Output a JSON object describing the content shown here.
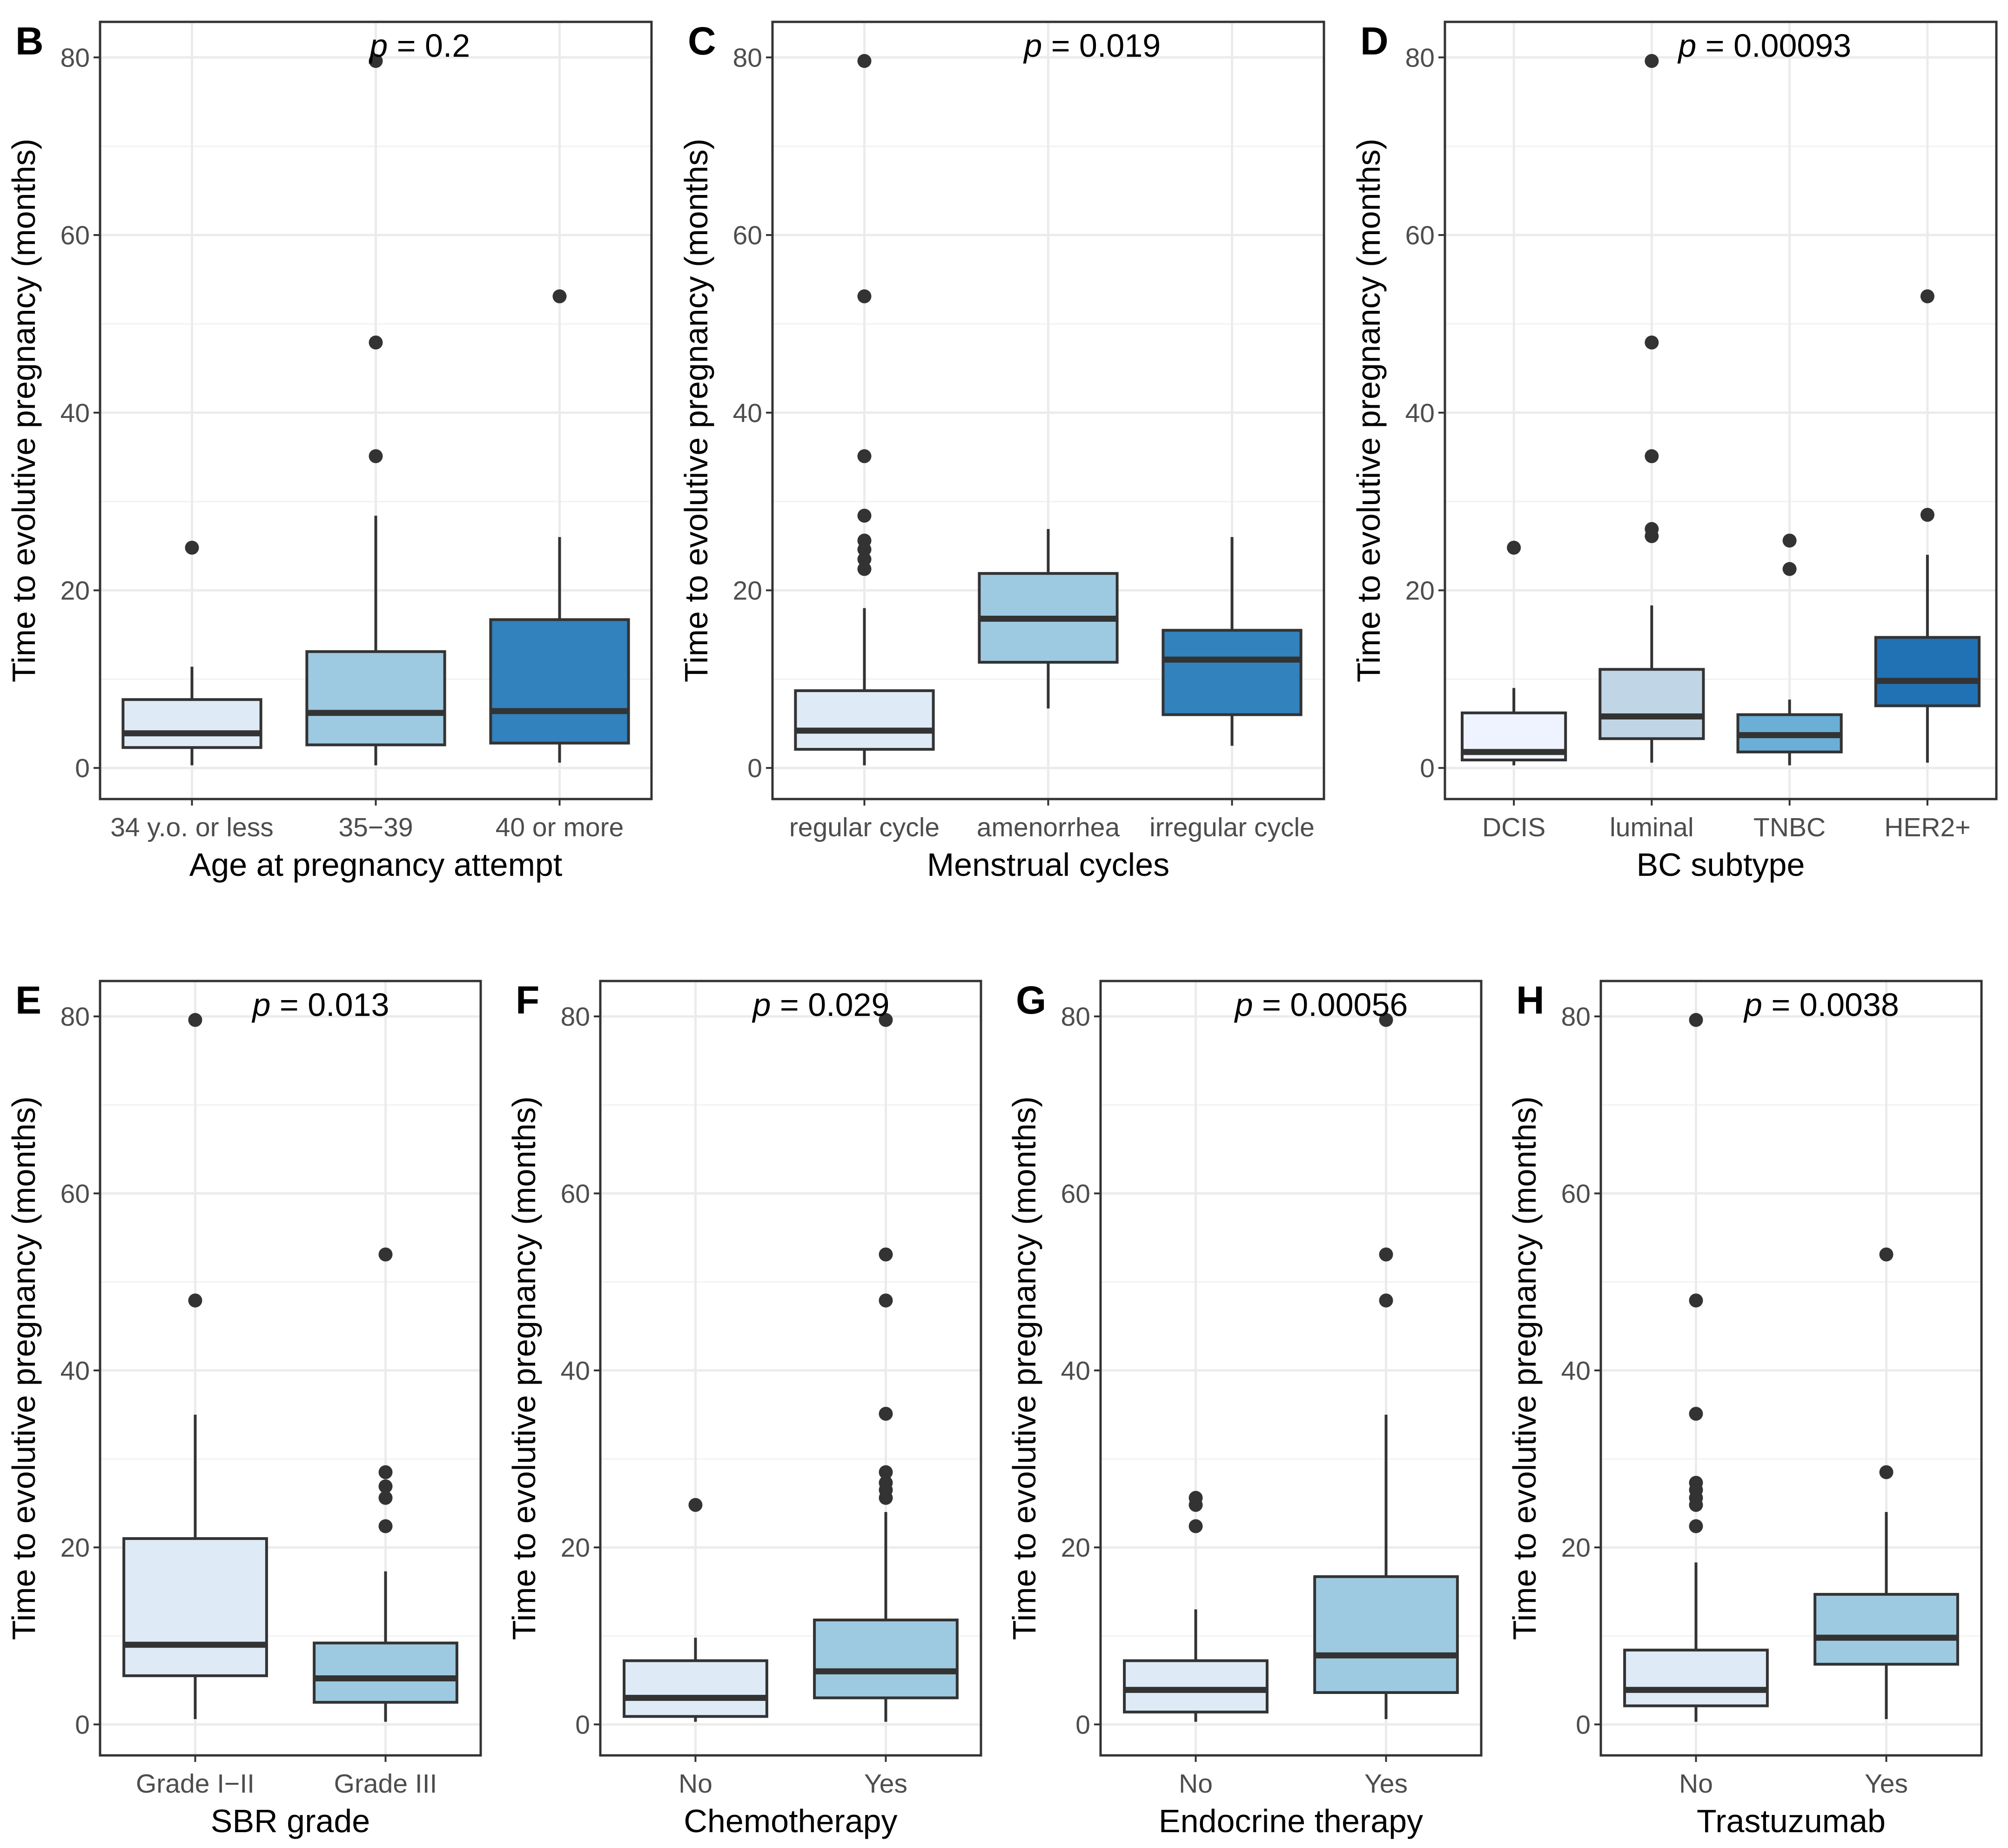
{
  "colors": {
    "fill_lightest": "#eff3ff",
    "fill_very_light": "#deebf7",
    "fill_grey_blue": "#c0d6e6",
    "fill_light": "#9ecae1",
    "fill_mid": "#6baed6",
    "fill_dark": "#3182bd",
    "fill_darkest": "#2171b5",
    "outline": "#333333",
    "frame": "#333333",
    "grid": "#ebebeb"
  },
  "chart_data": [
    {
      "panel": "B",
      "type": "boxplot",
      "title": "",
      "p_symbol": "p",
      "p_text": "= 0.2",
      "xlabel": "Age at pregnancy attempt",
      "ylabel": "Time to evolutive pregnancy (months)",
      "ylim": [
        -3.5,
        84
      ],
      "yticks": [
        "0",
        "20",
        "40",
        "60",
        "80"
      ],
      "grid": true,
      "categories": [
        "34 y.o. or less",
        "35−39",
        "40 or more"
      ],
      "boxes": [
        {
          "low": 0.3,
          "q1": 2.3,
          "median": 3.9,
          "q3": 7.7,
          "high": 11.4,
          "outliers": [
            24.8
          ],
          "fill": "#deebf7"
        },
        {
          "low": 0.3,
          "q1": 2.6,
          "median": 6.2,
          "q3": 13.1,
          "high": 28.4,
          "outliers": [
            35.1,
            47.9,
            79.6
          ],
          "fill": "#9ecae1"
        },
        {
          "low": 0.6,
          "q1": 2.8,
          "median": 6.4,
          "q3": 16.7,
          "high": 26.0,
          "outliers": [
            53.1
          ],
          "fill": "#3182bd"
        }
      ]
    },
    {
      "panel": "C",
      "type": "boxplot",
      "title": "",
      "p_symbol": "p",
      "p_text": "= 0.019",
      "xlabel": "Menstrual cycles",
      "ylabel": "Time to evolutive pregnancy (months)",
      "ylim": [
        -3.5,
        84
      ],
      "yticks": [
        "0",
        "20",
        "40",
        "60",
        "80"
      ],
      "grid": true,
      "categories": [
        "regular cycle",
        "amenorrhea",
        "irregular cycle"
      ],
      "boxes": [
        {
          "low": 0.3,
          "q1": 2.1,
          "median": 4.2,
          "q3": 8.7,
          "high": 18.0,
          "outliers": [
            22.4,
            23.5,
            24.6,
            25.6,
            28.4,
            35.1,
            53.1,
            79.6
          ],
          "fill": "#deebf7"
        },
        {
          "low": 6.7,
          "q1": 11.9,
          "median": 16.8,
          "q3": 21.9,
          "high": 26.9,
          "outliers": [],
          "fill": "#9ecae1"
        },
        {
          "low": 2.5,
          "q1": 6.0,
          "median": 12.2,
          "q3": 15.5,
          "high": 26.0,
          "outliers": [],
          "fill": "#3182bd"
        }
      ]
    },
    {
      "panel": "D",
      "type": "boxplot",
      "title": "",
      "p_symbol": "p",
      "p_text": "= 0.00093",
      "xlabel": "BC subtype",
      "ylabel": "Time to evolutive pregnancy (months)",
      "ylim": [
        -3.5,
        84
      ],
      "yticks": [
        "0",
        "20",
        "40",
        "60",
        "80"
      ],
      "grid": true,
      "categories": [
        "DCIS",
        "luminal",
        "TNBC",
        "HER2+"
      ],
      "boxes": [
        {
          "low": 0.3,
          "q1": 0.9,
          "median": 1.8,
          "q3": 6.2,
          "high": 9.0,
          "outliers": [
            24.8
          ],
          "fill": "#eff3ff"
        },
        {
          "low": 0.6,
          "q1": 3.3,
          "median": 5.8,
          "q3": 11.1,
          "high": 18.3,
          "outliers": [
            26.1,
            26.9,
            35.1,
            47.9,
            79.6
          ],
          "fill": "#c0d6e6"
        },
        {
          "low": 0.3,
          "q1": 1.8,
          "median": 3.7,
          "q3": 6.0,
          "high": 7.7,
          "outliers": [
            22.4,
            25.6
          ],
          "fill": "#6baed6"
        },
        {
          "low": 0.6,
          "q1": 7.0,
          "median": 9.8,
          "q3": 14.7,
          "high": 24.0,
          "outliers": [
            28.5,
            53.1
          ],
          "fill": "#2171b5"
        }
      ]
    },
    {
      "panel": "E",
      "type": "boxplot",
      "title": "",
      "p_symbol": "p",
      "p_text": "= 0.013",
      "xlabel": "SBR grade",
      "ylabel": "Time to evolutive pregnancy (months)",
      "ylim": [
        -3.5,
        84
      ],
      "yticks": [
        "0",
        "20",
        "40",
        "60",
        "80"
      ],
      "grid": true,
      "categories": [
        "Grade I−II",
        "Grade III"
      ],
      "boxes": [
        {
          "low": 0.6,
          "q1": 5.5,
          "median": 9.0,
          "q3": 21.0,
          "high": 35.0,
          "outliers": [
            47.9,
            79.6
          ],
          "fill": "#deebf7"
        },
        {
          "low": 0.3,
          "q1": 2.5,
          "median": 5.2,
          "q3": 9.2,
          "high": 17.3,
          "outliers": [
            22.4,
            25.6,
            26.9,
            28.5,
            53.1
          ],
          "fill": "#9ecae1"
        }
      ]
    },
    {
      "panel": "F",
      "type": "boxplot",
      "title": "",
      "p_symbol": "p",
      "p_text": "= 0.029",
      "xlabel": "Chemotherapy",
      "ylabel": "Time to evolutive pregnancy (months)",
      "ylim": [
        -3.5,
        84
      ],
      "yticks": [
        "0",
        "20",
        "40",
        "60",
        "80"
      ],
      "grid": true,
      "categories": [
        "No",
        "Yes"
      ],
      "boxes": [
        {
          "low": 0.3,
          "q1": 0.9,
          "median": 3.0,
          "q3": 7.2,
          "high": 9.8,
          "outliers": [
            24.8
          ],
          "fill": "#deebf7"
        },
        {
          "low": 0.3,
          "q1": 3.0,
          "median": 6.0,
          "q3": 11.8,
          "high": 24.0,
          "outliers": [
            25.6,
            26.5,
            27.3,
            28.5,
            35.1,
            47.9,
            53.1,
            79.6
          ],
          "fill": "#9ecae1"
        }
      ]
    },
    {
      "panel": "G",
      "type": "boxplot",
      "title": "",
      "p_symbol": "p",
      "p_text": "= 0.00056",
      "xlabel": "Endocrine therapy",
      "ylabel": "Time to evolutive pregnancy (months)",
      "ylim": [
        -3.5,
        84
      ],
      "yticks": [
        "0",
        "20",
        "40",
        "60",
        "80"
      ],
      "grid": true,
      "categories": [
        "No",
        "Yes"
      ],
      "boxes": [
        {
          "low": 0.3,
          "q1": 1.4,
          "median": 3.9,
          "q3": 7.2,
          "high": 13.0,
          "outliers": [
            22.4,
            24.8,
            25.6
          ],
          "fill": "#deebf7"
        },
        {
          "low": 0.6,
          "q1": 3.6,
          "median": 7.8,
          "q3": 16.7,
          "high": 35.0,
          "outliers": [
            47.9,
            53.1,
            79.6
          ],
          "fill": "#9ecae1"
        }
      ]
    },
    {
      "panel": "H",
      "type": "boxplot",
      "title": "",
      "p_symbol": "p",
      "p_text": "= 0.0038",
      "xlabel": "Trastuzumab",
      "ylabel": "Time to evolutive pregnancy (months)",
      "ylim": [
        -3.5,
        84
      ],
      "yticks": [
        "0",
        "20",
        "40",
        "60",
        "80"
      ],
      "grid": true,
      "categories": [
        "No",
        "Yes"
      ],
      "boxes": [
        {
          "low": 0.3,
          "q1": 2.1,
          "median": 3.9,
          "q3": 8.4,
          "high": 18.3,
          "outliers": [
            22.4,
            24.8,
            25.6,
            26.5,
            27.3,
            35.1,
            47.9,
            79.6
          ],
          "fill": "#deebf7"
        },
        {
          "low": 0.6,
          "q1": 6.8,
          "median": 9.8,
          "q3": 14.7,
          "high": 24.0,
          "outliers": [
            28.5,
            53.1
          ],
          "fill": "#9ecae1"
        }
      ]
    }
  ]
}
